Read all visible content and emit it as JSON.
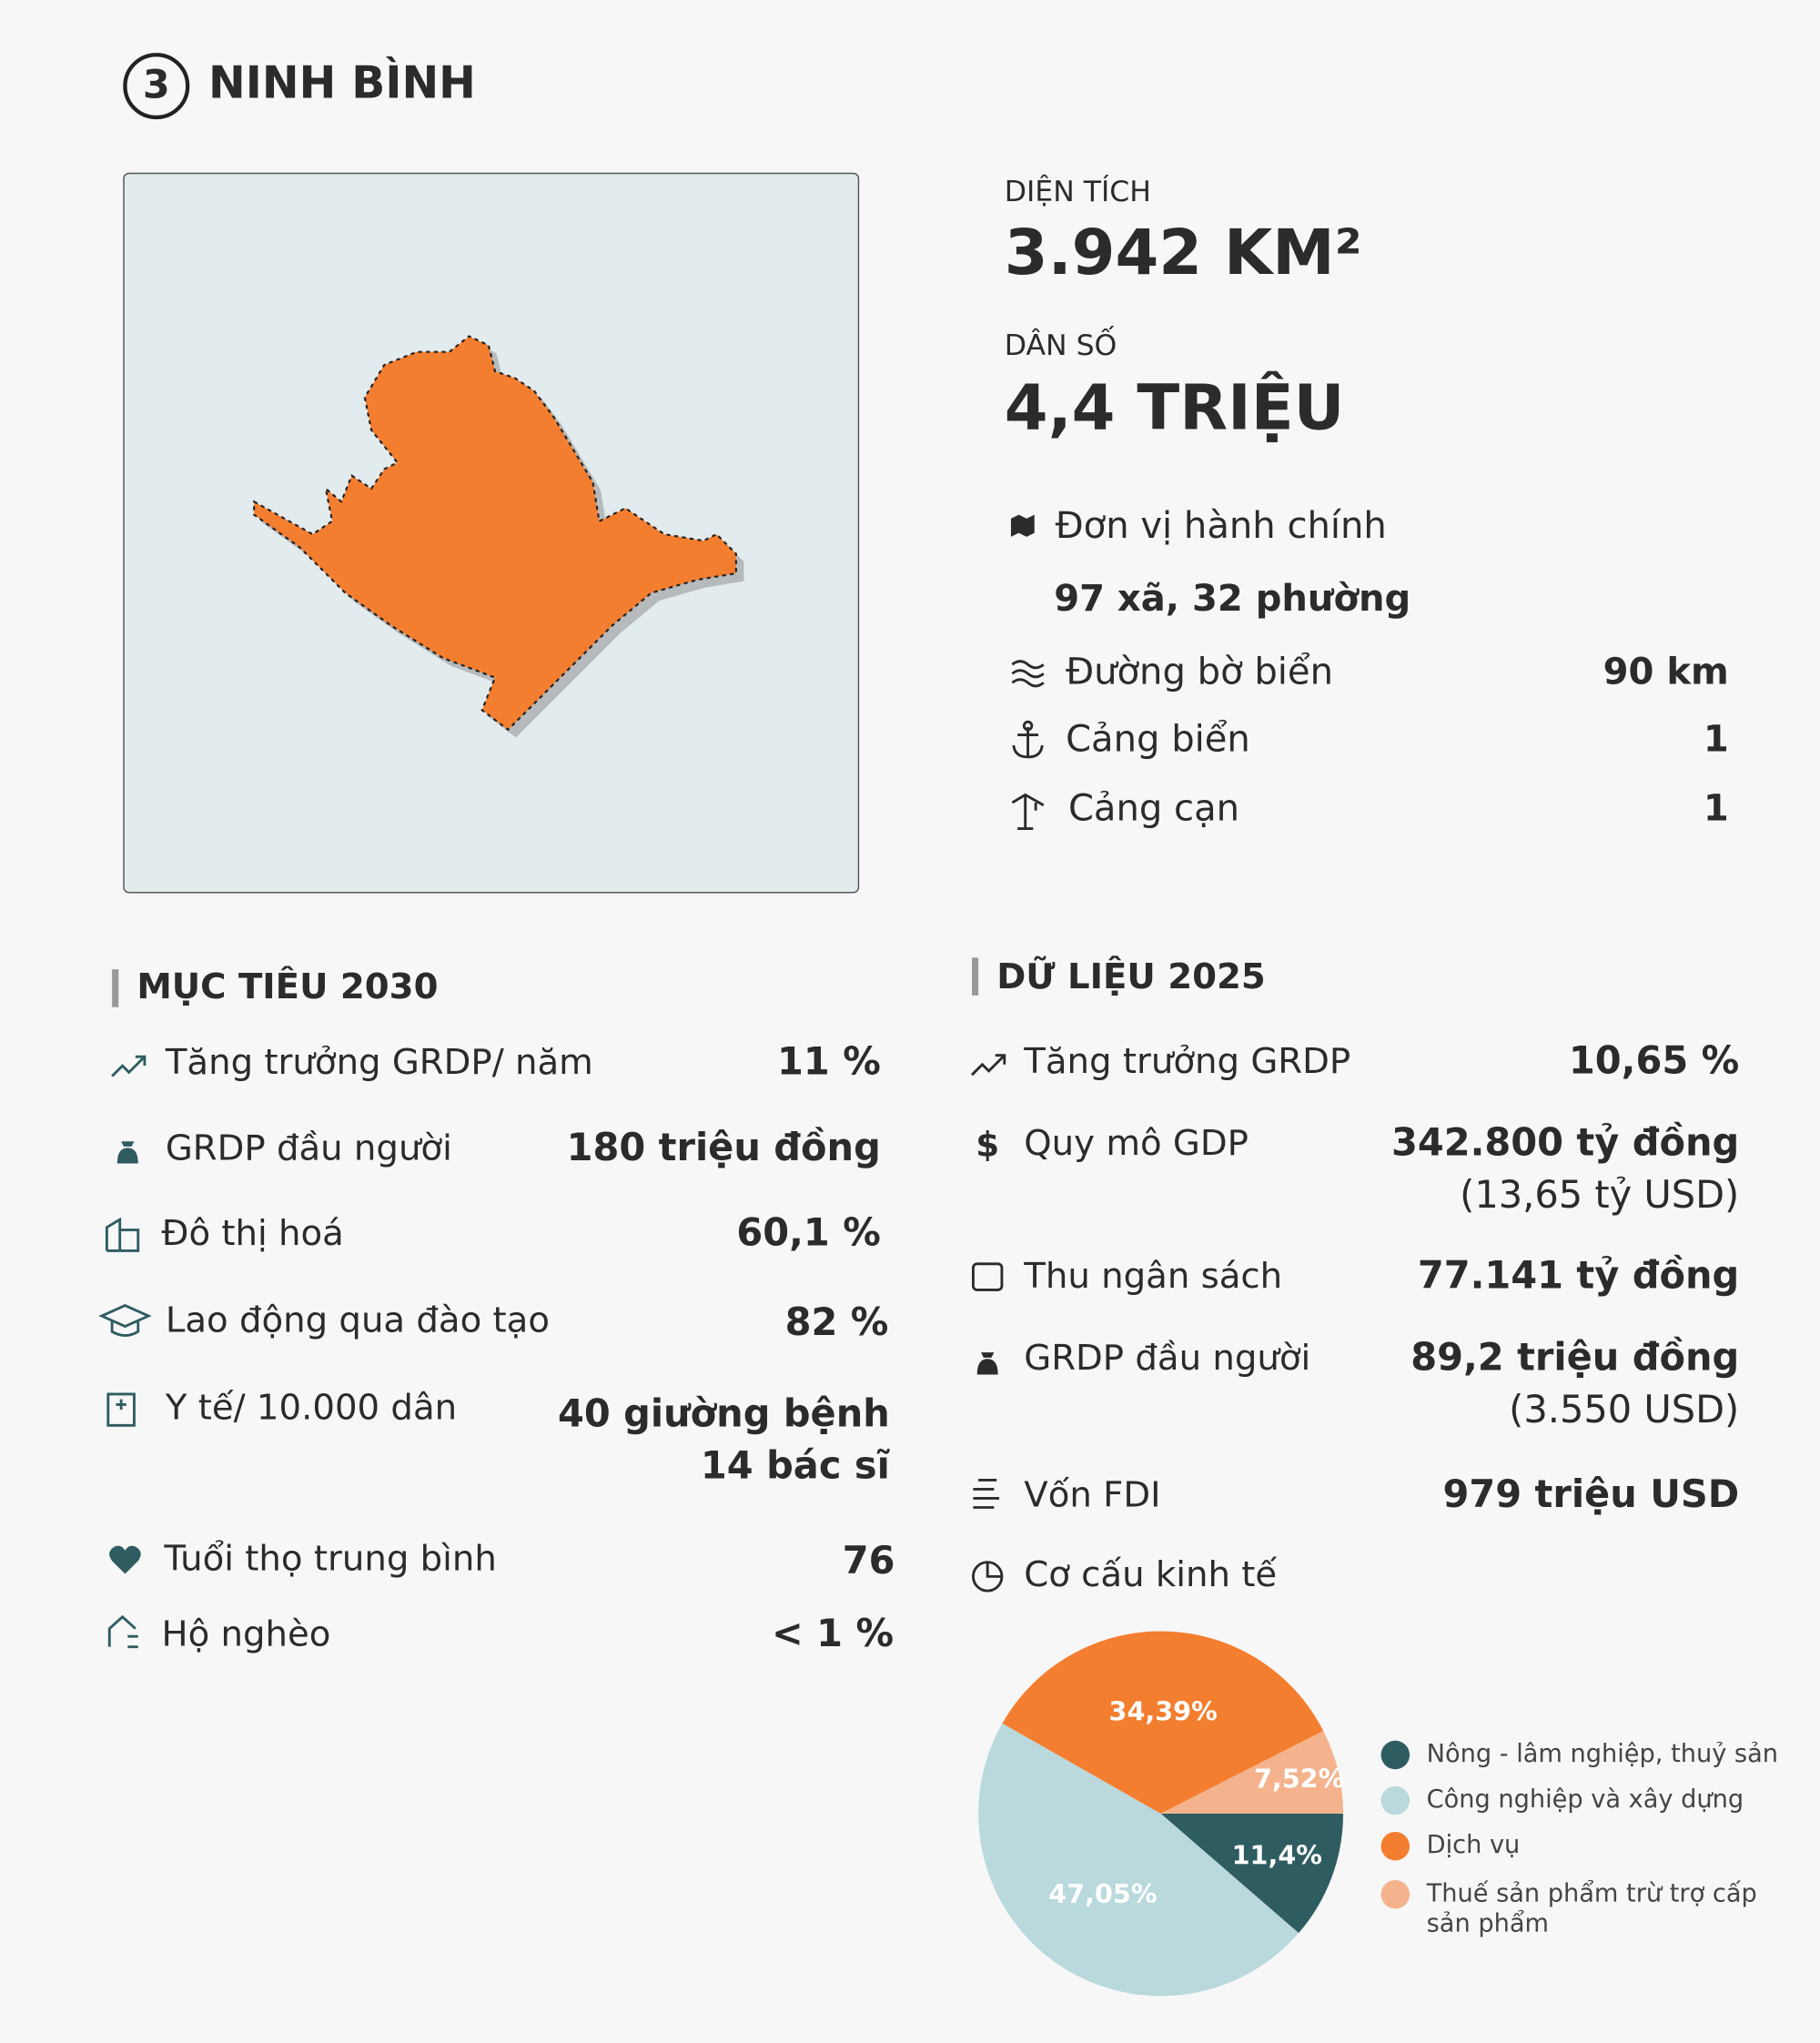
{
  "header": {
    "number": "3",
    "title": "NINH BÌNH"
  },
  "stats": {
    "area_label": "DIỆN TÍCH",
    "area_value": "3.942 KM²",
    "population_label": "DÂN SỐ",
    "population_value": "4,4 TRIỆU"
  },
  "admin": {
    "label": "Đơn vị hành chính",
    "value": "97 xã, 32 phường"
  },
  "infrastructure": [
    {
      "label": "Đường bờ biển",
      "value": "90 km"
    },
    {
      "label": "Cảng biển",
      "value": "1"
    },
    {
      "label": "Cảng cạn",
      "value": "1"
    }
  ],
  "targets_2030": {
    "title": "MỤC TIÊU 2030",
    "rows": [
      {
        "label": "Tăng trưởng GRDP/ năm",
        "lines": [
          "11 %"
        ]
      },
      {
        "label": "GRDP đầu người",
        "lines": [
          "180 triệu đồng"
        ]
      },
      {
        "label": "Đô thị hoá",
        "lines": [
          "60,1 %"
        ]
      },
      {
        "label": "Lao động qua đào tạo",
        "lines": [
          "82 %"
        ]
      },
      {
        "label": "Y tế/ 10.000 dân",
        "lines": [
          "40 giường bệnh",
          "14 bác sĩ"
        ]
      },
      {
        "label": "Tuổi thọ trung bình",
        "lines": [
          "76"
        ]
      },
      {
        "label": "Hộ nghèo",
        "lines": [
          "< 1 %"
        ]
      }
    ]
  },
  "data_2025": {
    "title": "DỮ LIỆU 2025",
    "rows": [
      {
        "label": "Tăng trưởng GRDP",
        "lines": [
          "10,65 %"
        ]
      },
      {
        "label": "Quy mô GDP",
        "lines": [
          "342.800 tỷ đồng",
          "(13,65 tỷ USD)"
        ]
      },
      {
        "label": "Thu ngân sách",
        "lines": [
          "77.141 tỷ đồng"
        ]
      },
      {
        "label": "GRDP đầu người",
        "lines": [
          "89,2 triệu đồng",
          "(3.550 USD)"
        ]
      },
      {
        "label": "Vốn FDI",
        "lines": [
          "979 triệu USD"
        ]
      },
      {
        "label": "Cơ cấu kinh tế",
        "lines": []
      }
    ]
  },
  "chart_data": {
    "type": "pie",
    "categories": [
      "Nông - lâm nghiệp, thuỷ sản",
      "Công nghiệp và xây dựng",
      "Dịch vụ",
      "Thuế sản phẩm trừ trợ cấp sản phẩm"
    ],
    "values": [
      11.4,
      47.05,
      34.39,
      7.52
    ],
    "value_labels": [
      "11,4%",
      "47,05%",
      "34,39%",
      "7,52%"
    ],
    "colors": [
      "#2f5c61",
      "#b9d9dc",
      "#f47e2f",
      "#f4b38c"
    ]
  }
}
